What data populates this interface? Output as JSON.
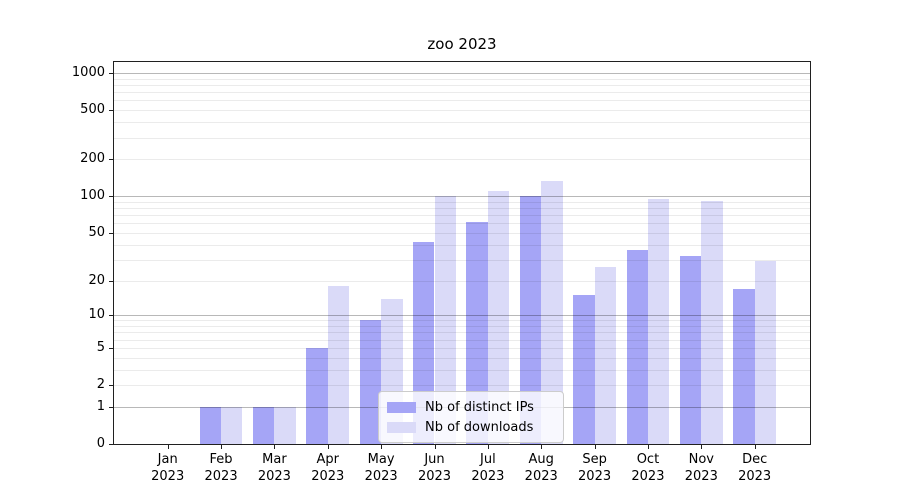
{
  "title": "zoo 2023",
  "colors": {
    "background": "#ffffff",
    "spine": "#202020",
    "text": "#000000",
    "grid_major": "rgba(0,0,0,0.28)",
    "grid_minor": "rgba(0,0,0,0.08)",
    "legend_border": "#cccccc",
    "legend_background": "rgba(255,255,255,0.8)"
  },
  "y_axis": {
    "tick_labels_top_to_bottom": [
      "1000",
      "500",
      "200",
      "100",
      "50",
      "20",
      "10",
      "5",
      "2",
      "1",
      "0"
    ]
  },
  "x_axis": {
    "year": "2023",
    "months": [
      "Jan",
      "Feb",
      "Mar",
      "Apr",
      "May",
      "Jun",
      "Jul",
      "Aug",
      "Sep",
      "Oct",
      "Nov",
      "Dec"
    ]
  },
  "legend": {
    "items": [
      {
        "label": "Nb of distinct IPs",
        "color": "#a5a5f6"
      },
      {
        "label": "Nb of downloads",
        "color": "#dadaf8"
      }
    ]
  },
  "chart_data": {
    "type": "bar",
    "title": "zoo 2023",
    "xlabel": "",
    "ylabel": "",
    "categories": [
      "Jan 2023",
      "Feb 2023",
      "Mar 2023",
      "Apr 2023",
      "May 2023",
      "Jun 2023",
      "Jul 2023",
      "Aug 2023",
      "Sep 2023",
      "Oct 2023",
      "Nov 2023",
      "Dec 2023"
    ],
    "series": [
      {
        "name": "Nb of distinct IPs",
        "color": "#a5a5f6",
        "values": [
          0,
          1,
          1,
          5,
          9,
          42,
          61,
          100,
          15,
          36,
          32,
          17
        ]
      },
      {
        "name": "Nb of downloads",
        "color": "#dadaf8",
        "values": [
          0,
          1,
          1,
          18,
          14,
          101,
          110,
          133,
          26,
          95,
          92,
          29
        ]
      }
    ],
    "yscale": "log10(value+1)",
    "yticks": [
      0,
      1,
      2,
      5,
      10,
      20,
      50,
      100,
      200,
      500,
      1000
    ],
    "ylim": [
      0,
      1230
    ],
    "grid": "both (major darker at 1,10,100,1000; faint minors)",
    "legend_position": "lower center inside plot"
  }
}
